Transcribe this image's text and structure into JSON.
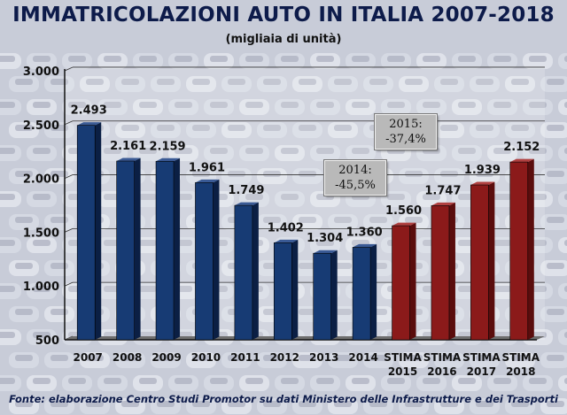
{
  "title": "IMMATRICOLAZIONI AUTO IN ITALIA 2007-2018",
  "subtitle": "(migliaia di unità)",
  "source": "Fonte: elaborazione Centro Studi Promotor  su dati Ministero delle Infrastrutture e dei Trasporti",
  "callouts": [
    {
      "line1": "2015:",
      "line2": "-37,4%"
    },
    {
      "line1": "2014:",
      "line2": "-45,5%"
    }
  ],
  "colors": {
    "actual": "#173b74",
    "estimate": "#8b1a1a",
    "title": "#0d1b4a"
  },
  "chart_data": {
    "type": "bar",
    "categories": [
      [
        "2007"
      ],
      [
        "2008"
      ],
      [
        "2009"
      ],
      [
        "2010"
      ],
      [
        "2011"
      ],
      [
        "2012"
      ],
      [
        "2013"
      ],
      [
        "2014"
      ],
      [
        "STIMA",
        "2015"
      ],
      [
        "STIMA",
        "2016"
      ],
      [
        "STIMA",
        "2017"
      ],
      [
        "STIMA",
        "2018"
      ]
    ],
    "values": [
      2493,
      2161,
      2159,
      1961,
      1749,
      1402,
      1304,
      1360,
      1560,
      1747,
      1939,
      2152
    ],
    "value_labels": [
      "2.493",
      "2.161",
      "2.159",
      "1.961",
      "1.749",
      "1.402",
      "1.304",
      "1.360",
      "1.560",
      "1.747",
      "1.939",
      "2.152"
    ],
    "estimate": [
      false,
      false,
      false,
      false,
      false,
      false,
      false,
      false,
      true,
      true,
      true,
      true
    ],
    "ylim": [
      500,
      3000
    ],
    "yticks": [
      500,
      1000,
      1500,
      2000,
      2500,
      3000
    ],
    "ytick_labels": [
      "500",
      "1.000",
      "1.500",
      "2.000",
      "2.500",
      "3.000"
    ],
    "grid": true
  }
}
